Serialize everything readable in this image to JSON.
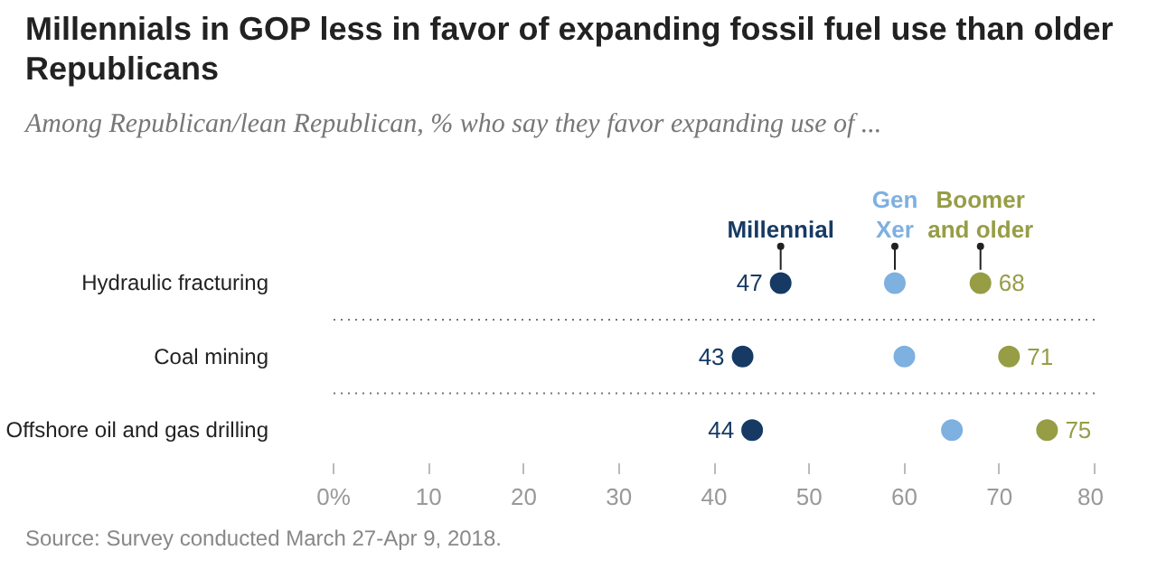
{
  "chart_data": {
    "type": "scatter",
    "orientation": "horizontal",
    "title": "Millennials in GOP less in favor of expanding fossil fuel use than older Republicans",
    "subtitle": "Among Republican/lean Republican, % who say they favor expanding use of ...",
    "categories": [
      "Hydraulic fracturing",
      "Coal mining",
      "Offshore oil and gas drilling"
    ],
    "series": [
      {
        "name": "Millennial",
        "color": "#173a64",
        "values": [
          47,
          43,
          44
        ],
        "value_labels": [
          "47",
          "43",
          "44"
        ]
      },
      {
        "name": "Gen Xer",
        "color": "#7eb0e0",
        "values": [
          59,
          60,
          65
        ],
        "value_labels": [
          null,
          null,
          null
        ]
      },
      {
        "name": "Boomer and older",
        "color": "#969d45",
        "values": [
          68,
          71,
          75
        ],
        "value_labels": [
          "68",
          "71",
          "75"
        ]
      }
    ],
    "xlim": [
      0,
      80
    ],
    "xticks": [
      {
        "value": 0,
        "label": "0%"
      },
      10,
      20,
      30,
      40,
      50,
      60,
      70,
      80
    ],
    "marker": "circle",
    "annotations": [
      "Source: Survey conducted March 27-Apr 9, 2018."
    ]
  }
}
